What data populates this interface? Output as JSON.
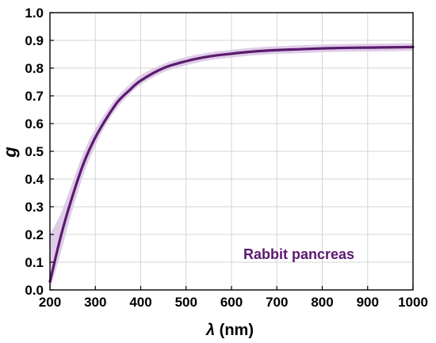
{
  "chart_data": {
    "type": "line",
    "title": "",
    "xlabel_symbol": "λ",
    "xlabel_unit": " (nm)",
    "ylabel": "g",
    "xlim": [
      200,
      1000
    ],
    "ylim": [
      0,
      1
    ],
    "x_ticks": [
      200,
      300,
      400,
      500,
      600,
      700,
      800,
      900,
      1000
    ],
    "x_tick_labels": [
      "200",
      "300",
      "400",
      "500",
      "600",
      "700",
      "800",
      "900",
      "1000"
    ],
    "y_ticks": [
      0,
      0.1,
      0.2,
      0.3,
      0.4,
      0.5,
      0.6,
      0.7,
      0.8,
      0.9,
      1.0
    ],
    "y_tick_labels": [
      "0.0",
      "0.1",
      "0.2",
      "0.3",
      "0.4",
      "0.5",
      "0.6",
      "0.7",
      "0.8",
      "0.9",
      "1.0"
    ],
    "grid": true,
    "annotation": "Rabbit pancreas",
    "colors": {
      "line": "#5b1a6e",
      "band": "#dcc8e6",
      "annotation": "#5b1a6e"
    },
    "series": [
      {
        "x": [
          200,
          225,
          250,
          275,
          300,
          325,
          350,
          375,
          400,
          450,
          500,
          550,
          600,
          650,
          700,
          750,
          800,
          850,
          900,
          950,
          1000
        ],
        "y": [
          0.03,
          0.2,
          0.34,
          0.46,
          0.55,
          0.62,
          0.68,
          0.72,
          0.755,
          0.8,
          0.825,
          0.842,
          0.852,
          0.86,
          0.865,
          0.868,
          0.871,
          0.873,
          0.874,
          0.875,
          0.876
        ],
        "lower": [
          0.0,
          0.14,
          0.29,
          0.42,
          0.52,
          0.6,
          0.66,
          0.705,
          0.74,
          0.785,
          0.81,
          0.828,
          0.838,
          0.846,
          0.851,
          0.854,
          0.857,
          0.859,
          0.86,
          0.861,
          0.862
        ],
        "upper": [
          0.2,
          0.28,
          0.39,
          0.5,
          0.58,
          0.645,
          0.7,
          0.74,
          0.775,
          0.815,
          0.84,
          0.856,
          0.866,
          0.874,
          0.879,
          0.882,
          0.885,
          0.887,
          0.888,
          0.889,
          0.89
        ]
      }
    ]
  }
}
